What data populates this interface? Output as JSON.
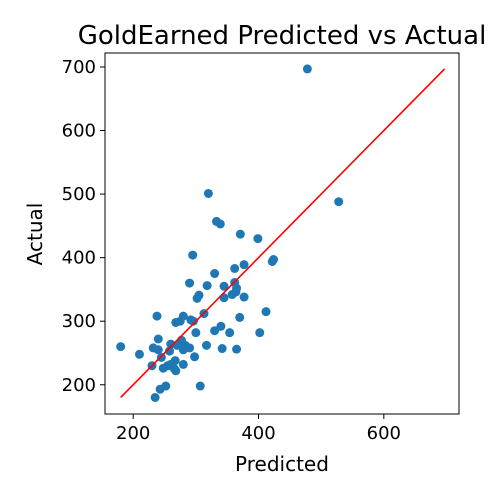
{
  "chart_data": {
    "type": "scatter",
    "title": "GoldEarned Predicted vs Actual",
    "xlabel": "Predicted",
    "ylabel": "Actual",
    "xlim": [
      155,
      720
    ],
    "ylim": [
      154,
      722
    ],
    "xticks": [
      200,
      400,
      600
    ],
    "yticks": [
      200,
      300,
      400,
      500,
      600,
      700
    ],
    "grid": false,
    "legend": "none",
    "colors": {
      "points": "#1f77b4",
      "reference_line": "#ff0000"
    },
    "reference_line": {
      "x": [
        180,
        697
      ],
      "y": [
        180,
        697
      ]
    },
    "series": [
      {
        "points": [
          [
            478,
            697
          ],
          [
            528,
            488
          ],
          [
            320,
            501
          ],
          [
            333,
            457
          ],
          [
            339,
            453
          ],
          [
            371,
            437
          ],
          [
            399,
            430
          ],
          [
            295,
            404
          ],
          [
            422,
            394
          ],
          [
            424,
            397
          ],
          [
            377,
            389
          ],
          [
            362,
            383
          ],
          [
            330,
            375
          ],
          [
            290,
            360
          ],
          [
            362,
            361
          ],
          [
            365,
            352
          ],
          [
            345,
            355
          ],
          [
            318,
            356
          ],
          [
            364,
            346
          ],
          [
            358,
            342
          ],
          [
            377,
            338
          ],
          [
            345,
            337
          ],
          [
            302,
            336
          ],
          [
            305,
            341
          ],
          [
            313,
            312
          ],
          [
            412,
            315
          ],
          [
            370,
            306
          ],
          [
            238,
            308
          ],
          [
            268,
            298
          ],
          [
            280,
            308
          ],
          [
            275,
            300
          ],
          [
            292,
            302
          ],
          [
            296,
            300
          ],
          [
            340,
            292
          ],
          [
            330,
            285
          ],
          [
            354,
            282
          ],
          [
            402,
            282
          ],
          [
            300,
            282
          ],
          [
            240,
            272
          ],
          [
            277,
            270
          ],
          [
            260,
            264
          ],
          [
            270,
            262
          ],
          [
            283,
            262
          ],
          [
            317,
            262
          ],
          [
            232,
            258
          ],
          [
            240,
            255
          ],
          [
            290,
            258
          ],
          [
            180,
            260
          ],
          [
            258,
            253
          ],
          [
            280,
            255
          ],
          [
            342,
            257
          ],
          [
            365,
            256
          ],
          [
            210,
            248
          ],
          [
            245,
            243
          ],
          [
            298,
            244
          ],
          [
            267,
            238
          ],
          [
            260,
            232
          ],
          [
            255,
            230
          ],
          [
            280,
            232
          ],
          [
            230,
            230
          ],
          [
            265,
            226
          ],
          [
            248,
            226
          ],
          [
            268,
            222
          ],
          [
            252,
            198
          ],
          [
            243,
            193
          ],
          [
            307,
            198
          ],
          [
            235,
            180
          ]
        ]
      }
    ]
  }
}
